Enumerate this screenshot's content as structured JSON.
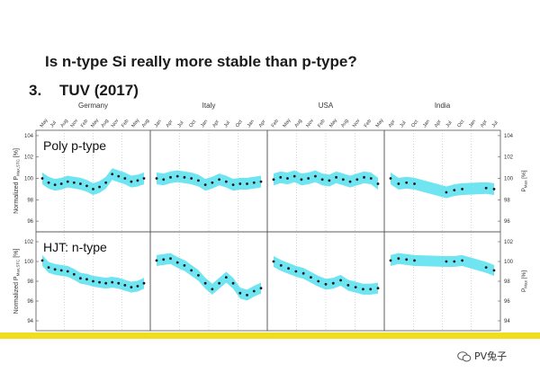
{
  "slide": {
    "title": "Is n-type Si really more stable than p-type?",
    "section_number": "3.",
    "section_title": "TUV (2017)",
    "watermark": "PV兔子"
  },
  "colors": {
    "band": "#55e0ee",
    "points": "#1a1a1a",
    "accent_bar": "#f2dd1c"
  },
  "chart_data": {
    "type": "scatter",
    "panels": [
      "Germany",
      "Italy",
      "USA",
      "India"
    ],
    "month_ticks": [
      [
        "May",
        "Jul",
        "Aug",
        "Nov",
        "Feb",
        "May",
        "Aug",
        "Nov",
        "Feb",
        "May",
        "Aug"
      ],
      [
        "Jan",
        "Apr",
        "Jul",
        "Oct",
        "Jan",
        "Apr",
        "Jul",
        "Oct",
        "Jan",
        "Apr"
      ],
      [
        "Feb",
        "May",
        "Aug",
        "Nov",
        "Feb",
        "May",
        "Aug",
        "Nov",
        "Feb",
        "May"
      ],
      [
        "Apr",
        "Jul",
        "Oct",
        "Jan",
        "Apr",
        "Jul",
        "Oct",
        "Jan",
        "Apr",
        "Jul"
      ]
    ],
    "y_ticks": [
      "104",
      "102",
      "100",
      "98",
      "96"
    ],
    "y_ticks_bottom": [
      "102",
      "100",
      "98",
      "96",
      "94"
    ],
    "ylabel_left": "Normalized P",
    "ylabel_left_sub": "Max,STC",
    "ylabel_unit": "[%]",
    "ylabel_right": "P",
    "ylabel_right_sub": "Max",
    "rows": [
      {
        "label": "Poly p-type",
        "ylim": [
          95,
          104.5
        ],
        "series": [
          [
            100.0,
            99.6,
            99.4,
            99.5,
            99.7,
            99.6,
            99.5,
            99.3,
            99.0,
            99.2,
            99.6,
            100.4,
            100.2,
            100.0,
            99.7,
            99.8,
            100.0
          ],
          [
            100.0,
            99.9,
            100.1,
            100.2,
            100.1,
            100.0,
            99.8,
            99.4,
            99.6,
            99.9,
            99.7,
            99.4,
            99.5,
            99.5,
            99.6,
            99.7
          ],
          [
            99.9,
            100.1,
            100.0,
            100.2,
            99.9,
            100.0,
            100.2,
            99.9,
            99.8,
            100.1,
            99.9,
            99.7,
            99.9,
            100.1,
            100.0,
            99.5
          ],
          [
            100.0,
            99.5,
            99.6,
            99.5,
            null,
            null,
            null,
            98.7,
            98.9,
            99.0,
            null,
            null,
            99.1,
            99.0
          ]
        ]
      },
      {
        "label": "HJT: n-type",
        "ylim": [
          93,
          103
        ],
        "series": [
          [
            100.1,
            99.4,
            99.2,
            99.1,
            99.0,
            98.7,
            98.3,
            98.2,
            98.0,
            97.9,
            97.8,
            97.9,
            97.8,
            97.6,
            97.4,
            97.5,
            97.8
          ],
          [
            100.1,
            100.2,
            100.3,
            99.9,
            99.6,
            99.1,
            98.6,
            97.8,
            97.2,
            97.8,
            98.4,
            97.8,
            96.8,
            96.6,
            97.0,
            97.3
          ],
          [
            100.0,
            99.6,
            99.3,
            99.0,
            98.8,
            98.4,
            98.0,
            97.7,
            97.8,
            98.1,
            97.6,
            97.4,
            97.2,
            97.2,
            97.3
          ],
          [
            100.1,
            100.3,
            100.2,
            100.1,
            null,
            null,
            null,
            100.0,
            100.0,
            100.1,
            null,
            null,
            99.4,
            99.1
          ]
        ]
      }
    ]
  }
}
